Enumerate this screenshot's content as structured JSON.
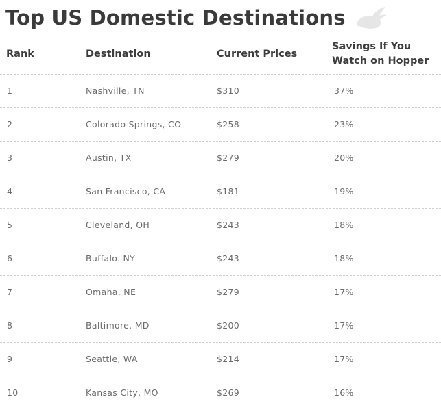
{
  "title": "Top US Domestic Destinations",
  "logo_icon": "rabbit-icon",
  "columns": {
    "rank": "Rank",
    "destination": "Destination",
    "price": "Current Prices",
    "savings_line1": "Savings If You",
    "savings_line2": "Watch on Hopper"
  },
  "rows": [
    {
      "rank": "1",
      "destination": "Nashville, TN",
      "price": "$310",
      "savings": "37%"
    },
    {
      "rank": "2",
      "destination": "Colorado Springs, CO",
      "price": "$258",
      "savings": "23%"
    },
    {
      "rank": "3",
      "destination": "Austin, TX",
      "price": "$279",
      "savings": "20%"
    },
    {
      "rank": "4",
      "destination": "San Francisco, CA",
      "price": "$181",
      "savings": "19%"
    },
    {
      "rank": "5",
      "destination": "Cleveland, OH",
      "price": "$243",
      "savings": "18%"
    },
    {
      "rank": "6",
      "destination": "Buffalo. NY",
      "price": "$243",
      "savings": "18%"
    },
    {
      "rank": "7",
      "destination": "Omaha, NE",
      "price": "$279",
      "savings": "17%"
    },
    {
      "rank": "8",
      "destination": "Baltimore, MD",
      "price": "$200",
      "savings": "17%"
    },
    {
      "rank": "9",
      "destination": "Seattle, WA",
      "price": "$214",
      "savings": "17%"
    },
    {
      "rank": "10",
      "destination": "Kansas City, MO",
      "price": "$269",
      "savings": "16%"
    }
  ]
}
